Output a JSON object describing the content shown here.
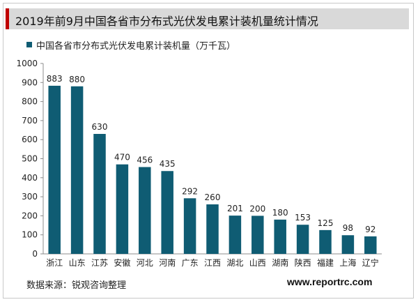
{
  "header": {
    "title": "2019年前9月中国各省市分布式光伏发电累计装机量统计情况",
    "accent_color": "#c00000",
    "bar_color": "#d9d9d9"
  },
  "chart_data": {
    "type": "bar",
    "title": "",
    "xlabel": "",
    "ylabel": "",
    "ylim": [
      0,
      1000
    ],
    "yticks": [
      0,
      100,
      200,
      300,
      400,
      500,
      600,
      700,
      800,
      900,
      1000
    ],
    "grid": false,
    "legend_position": "top-left",
    "categories": [
      "浙江",
      "山东",
      "江苏",
      "安徽",
      "河北",
      "河南",
      "广东",
      "江西",
      "湖北",
      "山西",
      "湖南",
      "陕西",
      "福建",
      "上海",
      "辽宁"
    ],
    "series": [
      {
        "name": "中国各省市分布式光伏发电累计装机量（万千瓦）",
        "color": "#0f5c73",
        "values": [
          883,
          880,
          630,
          470,
          456,
          435,
          292,
          260,
          201,
          200,
          180,
          153,
          125,
          98,
          92
        ]
      }
    ]
  },
  "footer": {
    "source": "数据来源：锐观咨询整理",
    "website": "www.reportrc.com"
  }
}
